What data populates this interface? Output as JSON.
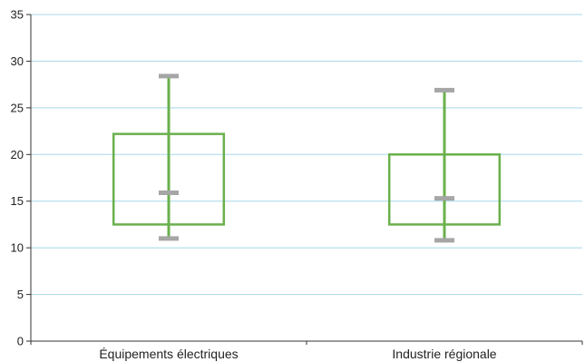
{
  "chart_data": {
    "type": "boxplot",
    "title": "",
    "xlabel": "",
    "ylabel": "",
    "ylim": [
      0,
      35
    ],
    "y_ticks": [
      "0",
      "5",
      "10",
      "15",
      "20",
      "25",
      "30",
      "35"
    ],
    "grid": true,
    "categories": [
      "Équipements électriques",
      "Industrie régionale"
    ],
    "series": [
      {
        "category": "Équipements électriques",
        "min": 11,
        "q1": 12.5,
        "median": 15.9,
        "q3": 22.2,
        "max": 28.4
      },
      {
        "category": "Industrie régionale",
        "min": 10.8,
        "q1": 12.5,
        "median": 15.3,
        "q3": 20.0,
        "max": 26.9
      }
    ],
    "colors": {
      "box": "#6ab04c",
      "whisker": "#6ab04c",
      "marker": "#a6a6a6",
      "grid": "#a8d8ea",
      "axis": "#333333"
    }
  }
}
